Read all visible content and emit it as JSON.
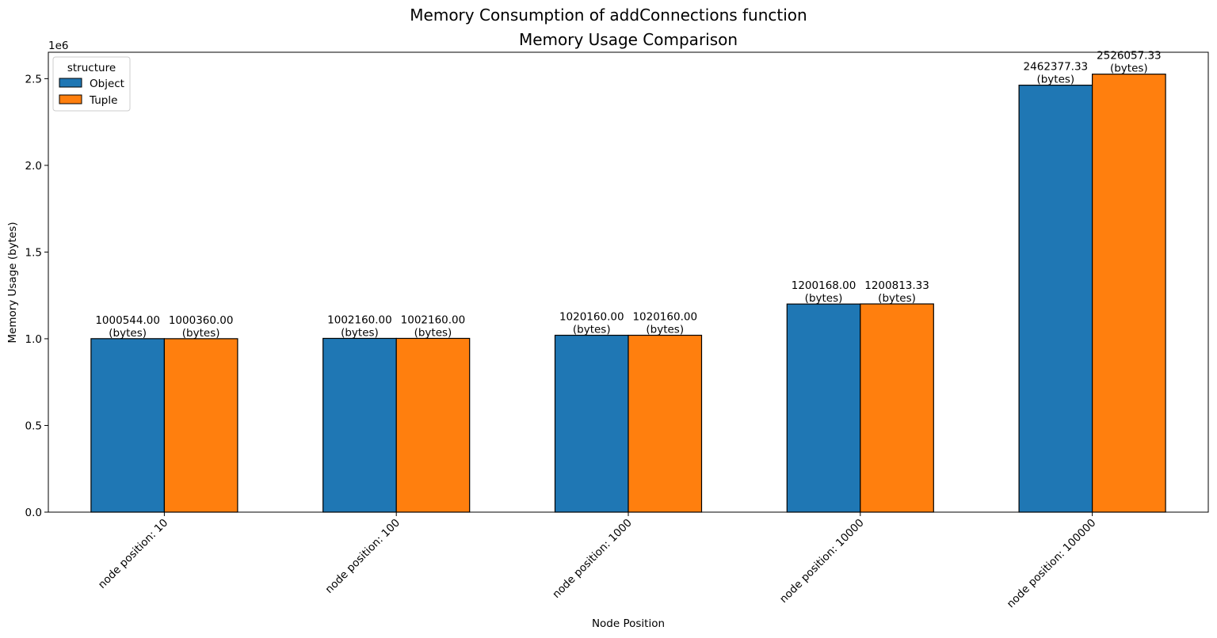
{
  "figure": {
    "suptitle": "Memory Consumption of addConnections function"
  },
  "chart_data": {
    "type": "bar",
    "title": "Memory Usage Comparison",
    "xlabel": "Node Position",
    "ylabel": "Memory Usage (bytes)",
    "y_offset_label": "1e6",
    "ylim": [
      0,
      2652360
    ],
    "yticks": [
      0,
      500000,
      1000000,
      1500000,
      2000000,
      2500000
    ],
    "ytick_labels": [
      "0.0",
      "0.5",
      "1.0",
      "1.5",
      "2.0",
      "2.5"
    ],
    "categories": [
      "node position: 10",
      "node position: 100",
      "node position: 1000",
      "node position: 10000",
      "node position: 100000"
    ],
    "legend": {
      "title": "structure",
      "position": "upper left"
    },
    "bar_label_unit": "(bytes)",
    "series": [
      {
        "name": "Object",
        "color": "#1f77b4",
        "values": [
          1000544.0,
          1002160.0,
          1020160.0,
          1200168.0,
          2462377.33
        ],
        "labels": [
          "1000544.00",
          "1002160.00",
          "1020160.00",
          "1200168.00",
          "2462377.33"
        ]
      },
      {
        "name": "Tuple",
        "color": "#ff7f0e",
        "values": [
          1000360.0,
          1002160.0,
          1020160.0,
          1200813.33,
          2526057.33
        ],
        "labels": [
          "1000360.00",
          "1002160.00",
          "1020160.00",
          "1200813.33",
          "2526057.33"
        ]
      }
    ],
    "grid": false
  }
}
